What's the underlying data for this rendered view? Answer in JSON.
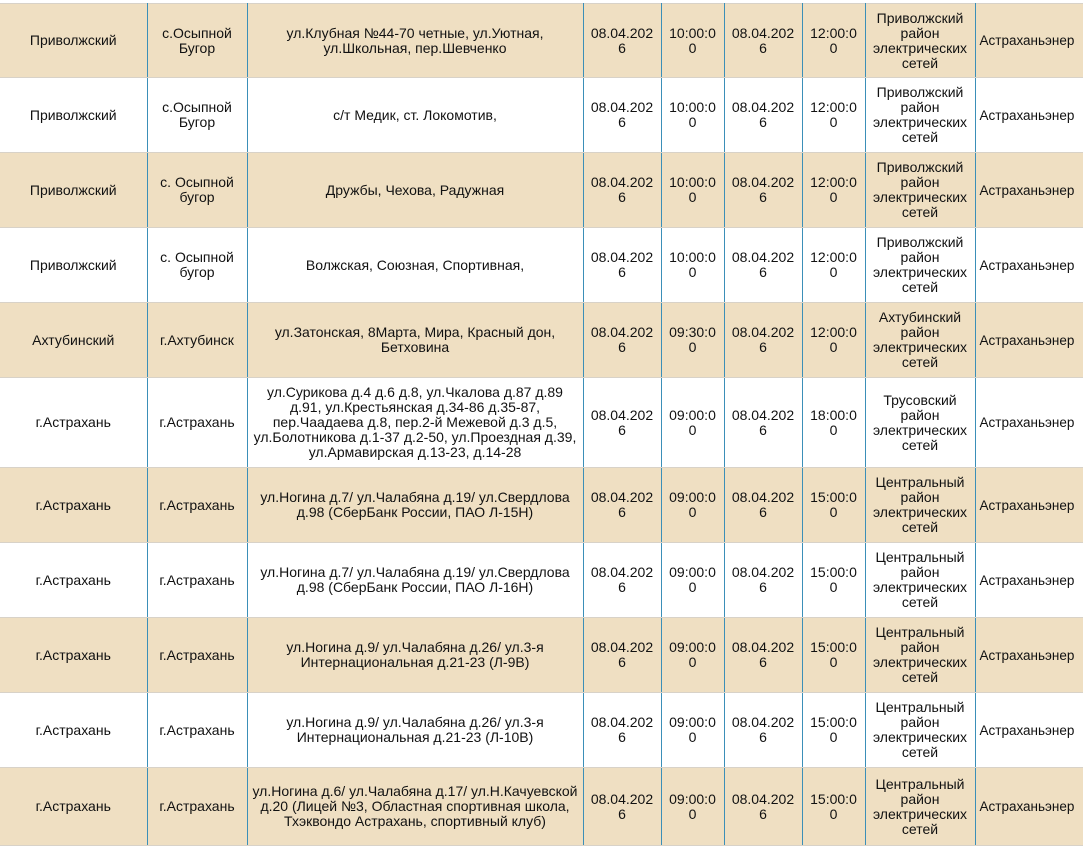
{
  "rows": [
    {
      "district": "Приволжский",
      "locality": "с.Осыпной Бугор",
      "streets": "ул.Клубная №44-70 четные, ул.Уютная, ул.Школьная, пер.Шевченко",
      "date_start": "08.04.2026",
      "time_start": "10:00:00",
      "date_end": "08.04.2026",
      "time_end": "12:00:00",
      "res": "Приволжский район электрических сетей",
      "org": "Астраханьэнер"
    },
    {
      "district": "Приволжский",
      "locality": "с.Осыпной Бугор",
      "streets": "с/т Медик, ст. Локомотив,",
      "date_start": "08.04.2026",
      "time_start": "10:00:00",
      "date_end": "08.04.2026",
      "time_end": "12:00:00",
      "res": "Приволжский район электрических сетей",
      "org": "Астраханьэнер"
    },
    {
      "district": "Приволжский",
      "locality": "с. Осыпной бугор",
      "streets": "Дружбы, Чехова, Радужная",
      "date_start": "08.04.2026",
      "time_start": "10:00:00",
      "date_end": "08.04.2026",
      "time_end": "12:00:00",
      "res": "Приволжский район электрических сетей",
      "org": "Астраханьэнер"
    },
    {
      "district": "Приволжский",
      "locality": "с. Осыпной бугор",
      "streets": "Волжская, Союзная, Спортивная,",
      "date_start": "08.04.2026",
      "time_start": "10:00:00",
      "date_end": "08.04.2026",
      "time_end": "12:00:00",
      "res": "Приволжский район электрических сетей",
      "org": "Астраханьэнер"
    },
    {
      "district": "Ахтубинский",
      "locality": "г.Ахтубинск",
      "streets": "ул.Затонская, 8Марта, Мира, Красный дон, Бетховина",
      "date_start": "08.04.2026",
      "time_start": "09:30:00",
      "date_end": "08.04.2026",
      "time_end": "12:00:00",
      "res": "Ахтубинский район электрических сетей",
      "org": "Астраханьэнер"
    },
    {
      "district": "г.Астрахань",
      "locality": "г.Астрахань",
      "streets": "ул.Сурикова д.4 д.6 д.8, ул.Чкалова д.87 д.89 д.91, ул.Крестьянская д.34-86 д.35-87, пер.Чаадаева д.8, пер.2-й Межевой д.3 д.5, ул.Болотникова д.1-37 д.2-50, ул.Проездная д.39, ул.Армавирская д.13-23, д.14-28",
      "date_start": "08.04.2026",
      "time_start": "09:00:00",
      "date_end": "08.04.2026",
      "time_end": "18:00:00",
      "res": "Трусовский район электрических сетей",
      "org": "Астраханьэнер"
    },
    {
      "district": "г.Астрахань",
      "locality": "г.Астрахань",
      "streets": "ул.Ногина д.7/ ул.Чалабяна д.19/ ул.Свердлова д.98 (СберБанк России, ПАО Л-15Н)",
      "date_start": "08.04.2026",
      "time_start": "09:00:00",
      "date_end": "08.04.2026",
      "time_end": "15:00:00",
      "res": "Центральный район электрических сетей",
      "org": "Астраханьэнер"
    },
    {
      "district": "г.Астрахань",
      "locality": "г.Астрахань",
      "streets": "ул.Ногина д.7/ ул.Чалабяна д.19/ ул.Свердлова д.98 (СберБанк России, ПАО Л-16Н)",
      "date_start": "08.04.2026",
      "time_start": "09:00:00",
      "date_end": "08.04.2026",
      "time_end": "15:00:00",
      "res": "Центральный район электрических сетей",
      "org": "Астраханьэнер"
    },
    {
      "district": "г.Астрахань",
      "locality": "г.Астрахань",
      "streets": "ул.Ногина д.9/ ул.Чалабяна д.26/ ул.3-я Интернациональная д.21-23 (Л-9В)",
      "date_start": "08.04.2026",
      "time_start": "09:00:00",
      "date_end": "08.04.2026",
      "time_end": "15:00:00",
      "res": "Центральный район электрических сетей",
      "org": "Астраханьэнер"
    },
    {
      "district": "г.Астрахань",
      "locality": "г.Астрахань",
      "streets": "ул.Ногина д.9/ ул.Чалабяна д.26/ ул.3-я Интернациональная д.21-23 (Л-10В)",
      "date_start": "08.04.2026",
      "time_start": "09:00:00",
      "date_end": "08.04.2026",
      "time_end": "15:00:00",
      "res": "Центральный район электрических сетей",
      "org": "Астраханьэнер"
    },
    {
      "district": "г.Астрахань",
      "locality": "г.Астрахань",
      "streets": "ул.Ногина д.6/ ул.Чалабяна д.17/ ул.Н.Качуевской д.20 (Лицей №3, Областная спортивная школа, Тхэквондо Астрахань, спортивный клуб)",
      "date_start": "08.04.2026",
      "time_start": "09:00:00",
      "date_end": "08.04.2026",
      "time_end": "15:00:00",
      "res": "Центральный район электрических сетей",
      "org": "Астраханьэнер"
    }
  ],
  "colors": {
    "row_alt": "#efdfc2",
    "row": "#ffffff",
    "column_border": "#3b8fb8"
  }
}
